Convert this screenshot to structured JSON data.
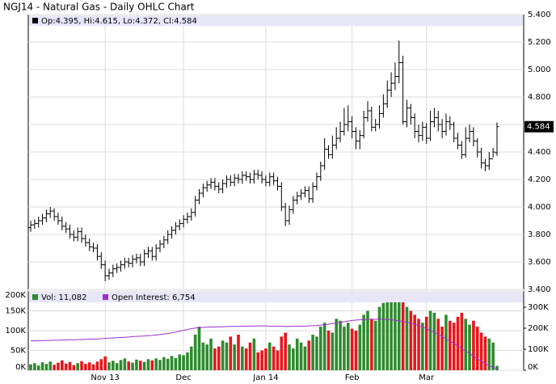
{
  "chart_data": [
    {
      "type": "ohlc",
      "title": "NGJ14 - Natural Gas - Daily OHLC Chart",
      "legend": "Op:4.395, Hi:4.615, Lo:4.372, Cl:4.584",
      "last_label": "4.584",
      "color": "#000000",
      "ylim": [
        3.4,
        5.4
      ],
      "yticks": [
        {
          "value": 3.4,
          "label": "3.400"
        },
        {
          "value": 3.6,
          "label": "3.600"
        },
        {
          "value": 3.8,
          "label": "3.800"
        },
        {
          "value": 4.0,
          "label": "4.000"
        },
        {
          "value": 4.2,
          "label": "4.200"
        },
        {
          "value": 4.4,
          "label": "4.400"
        },
        {
          "value": 4.6,
          "label": "4.600"
        },
        {
          "value": 4.8,
          "label": "4.800"
        },
        {
          "value": 5.0,
          "label": "5.000"
        },
        {
          "value": 5.2,
          "label": "5.200"
        },
        {
          "value": 5.4,
          "label": "5.400"
        }
      ],
      "grid": true,
      "open": [
        3.85,
        3.87,
        3.88,
        3.9,
        3.92,
        3.95,
        3.97,
        3.93,
        3.9,
        3.86,
        3.84,
        3.8,
        3.78,
        3.82,
        3.77,
        3.74,
        3.71,
        3.7,
        3.64,
        3.58,
        3.5,
        3.52,
        3.55,
        3.56,
        3.58,
        3.6,
        3.59,
        3.62,
        3.63,
        3.6,
        3.66,
        3.68,
        3.64,
        3.7,
        3.73,
        3.76,
        3.8,
        3.83,
        3.86,
        3.88,
        3.91,
        3.93,
        3.96,
        4.05,
        4.1,
        4.14,
        4.16,
        4.18,
        4.15,
        4.13,
        4.17,
        4.2,
        4.18,
        4.21,
        4.2,
        4.23,
        4.22,
        4.2,
        4.24,
        4.23,
        4.2,
        4.18,
        4.22,
        4.19,
        4.15,
        4.0,
        3.9,
        3.98,
        4.05,
        4.08,
        4.1,
        4.12,
        4.06,
        4.15,
        4.22,
        4.3,
        4.42,
        4.38,
        4.45,
        4.5,
        4.55,
        4.6,
        4.62,
        4.55,
        4.48,
        4.52,
        4.65,
        4.7,
        4.58,
        4.6,
        4.68,
        4.75,
        4.85,
        4.9,
        4.95,
        5.05,
        4.62,
        4.72,
        4.65,
        4.55,
        4.52,
        4.58,
        4.5,
        4.62,
        4.65,
        4.6,
        4.55,
        4.62,
        4.6,
        4.5,
        4.45,
        4.38,
        4.5,
        4.55,
        4.48,
        4.4,
        4.32,
        4.3,
        4.35,
        4.395
      ],
      "high": [
        3.9,
        3.91,
        3.93,
        3.95,
        3.98,
        4.0,
        3.99,
        3.96,
        3.93,
        3.89,
        3.87,
        3.83,
        3.85,
        3.85,
        3.8,
        3.77,
        3.74,
        3.73,
        3.67,
        3.61,
        3.55,
        3.58,
        3.59,
        3.61,
        3.63,
        3.63,
        3.65,
        3.66,
        3.66,
        3.69,
        3.71,
        3.71,
        3.73,
        3.76,
        3.79,
        3.83,
        3.86,
        3.89,
        3.91,
        3.94,
        3.96,
        3.99,
        4.08,
        4.13,
        4.17,
        4.19,
        4.21,
        4.21,
        4.18,
        4.2,
        4.23,
        4.23,
        4.24,
        4.24,
        4.26,
        4.26,
        4.25,
        4.27,
        4.27,
        4.26,
        4.23,
        4.25,
        4.25,
        4.22,
        4.18,
        4.03,
        4.01,
        4.08,
        4.11,
        4.13,
        4.15,
        4.15,
        4.18,
        4.25,
        4.33,
        4.5,
        4.45,
        4.52,
        4.58,
        4.62,
        4.72,
        4.74,
        4.66,
        4.58,
        4.56,
        4.7,
        4.77,
        4.73,
        4.64,
        4.74,
        4.82,
        4.92,
        4.98,
        5.05,
        5.21,
        5.1,
        4.78,
        4.75,
        4.68,
        4.6,
        4.62,
        4.61,
        4.7,
        4.72,
        4.7,
        4.64,
        4.68,
        4.66,
        4.62,
        4.54,
        4.48,
        4.58,
        4.6,
        4.58,
        4.5,
        4.43,
        4.35,
        4.4,
        4.43,
        4.615
      ],
      "low": [
        3.82,
        3.84,
        3.85,
        3.87,
        3.89,
        3.92,
        3.9,
        3.87,
        3.83,
        3.81,
        3.77,
        3.75,
        3.75,
        3.74,
        3.71,
        3.68,
        3.67,
        3.61,
        3.55,
        3.46,
        3.47,
        3.49,
        3.52,
        3.53,
        3.55,
        3.56,
        3.56,
        3.59,
        3.57,
        3.57,
        3.63,
        3.61,
        3.61,
        3.67,
        3.7,
        3.73,
        3.77,
        3.8,
        3.83,
        3.85,
        3.88,
        3.9,
        3.93,
        4.02,
        4.07,
        4.11,
        4.13,
        4.12,
        4.1,
        4.1,
        4.14,
        4.15,
        4.15,
        4.17,
        4.17,
        4.19,
        4.17,
        4.17,
        4.2,
        4.17,
        4.15,
        4.15,
        4.16,
        4.12,
        3.97,
        3.86,
        3.87,
        3.95,
        4.02,
        4.05,
        4.07,
        4.03,
        4.03,
        4.12,
        4.19,
        4.27,
        4.35,
        4.35,
        4.42,
        4.47,
        4.52,
        4.55,
        4.5,
        4.42,
        4.42,
        4.5,
        4.62,
        4.55,
        4.55,
        4.57,
        4.65,
        4.72,
        4.8,
        4.85,
        4.9,
        4.6,
        4.58,
        4.6,
        4.5,
        4.47,
        4.48,
        4.46,
        4.48,
        4.58,
        4.55,
        4.5,
        4.52,
        4.56,
        4.47,
        4.42,
        4.35,
        4.36,
        4.47,
        4.44,
        4.36,
        4.28,
        4.26,
        4.27,
        4.36,
        4.372
      ],
      "close": [
        3.87,
        3.88,
        3.9,
        3.92,
        3.95,
        3.97,
        3.93,
        3.9,
        3.86,
        3.84,
        3.8,
        3.78,
        3.82,
        3.77,
        3.74,
        3.71,
        3.7,
        3.64,
        3.58,
        3.5,
        3.52,
        3.55,
        3.56,
        3.58,
        3.6,
        3.59,
        3.62,
        3.63,
        3.6,
        3.66,
        3.68,
        3.64,
        3.7,
        3.73,
        3.76,
        3.8,
        3.83,
        3.86,
        3.88,
        3.91,
        3.93,
        3.96,
        4.05,
        4.1,
        4.14,
        4.16,
        4.18,
        4.15,
        4.13,
        4.17,
        4.2,
        4.18,
        4.21,
        4.2,
        4.23,
        4.22,
        4.2,
        4.24,
        4.23,
        4.2,
        4.18,
        4.22,
        4.19,
        4.15,
        4.0,
        3.9,
        3.98,
        4.05,
        4.08,
        4.1,
        4.12,
        4.06,
        4.15,
        4.22,
        4.3,
        4.42,
        4.38,
        4.45,
        4.5,
        4.55,
        4.6,
        4.62,
        4.55,
        4.48,
        4.52,
        4.65,
        4.7,
        4.58,
        4.6,
        4.68,
        4.75,
        4.85,
        4.9,
        4.95,
        5.05,
        4.62,
        4.72,
        4.65,
        4.55,
        4.52,
        4.58,
        4.5,
        4.62,
        4.65,
        4.6,
        4.55,
        4.62,
        4.6,
        4.5,
        4.45,
        4.38,
        4.5,
        4.55,
        4.48,
        4.4,
        4.32,
        4.3,
        4.35,
        4.4,
        4.584
      ]
    },
    {
      "type": "volume",
      "categories": [
        null,
        null,
        null,
        null,
        null,
        null,
        null,
        null,
        null,
        null,
        null,
        null,
        null,
        null,
        null,
        null,
        null,
        null,
        null,
        "Nov 13",
        null,
        null,
        null,
        null,
        null,
        null,
        null,
        null,
        null,
        null,
        null,
        null,
        null,
        null,
        null,
        null,
        null,
        null,
        null,
        "Dec",
        null,
        null,
        null,
        null,
        null,
        null,
        null,
        null,
        null,
        null,
        null,
        null,
        null,
        null,
        null,
        null,
        null,
        null,
        null,
        null,
        "Jan 14",
        null,
        null,
        null,
        null,
        null,
        null,
        null,
        null,
        null,
        null,
        null,
        null,
        null,
        null,
        null,
        null,
        null,
        null,
        null,
        null,
        null,
        "Feb",
        null,
        null,
        null,
        null,
        null,
        null,
        null,
        null,
        null,
        null,
        null,
        null,
        null,
        null,
        null,
        null,
        null,
        null,
        "Mar",
        null,
        null,
        null,
        null,
        null,
        null,
        null,
        null,
        null,
        null,
        null,
        null,
        null,
        null,
        null,
        null,
        null,
        null
      ],
      "ylim": [
        0,
        200000
      ],
      "yticks": [
        {
          "value": 0,
          "label": "0K"
        },
        {
          "value": 50000,
          "label": "50K"
        },
        {
          "value": 100000,
          "label": "100K"
        },
        {
          "value": 150000,
          "label": "150K"
        },
        {
          "value": 200000,
          "label": "200K"
        }
      ],
      "y2lim": [
        0,
        377000
      ],
      "y2ticks": [
        {
          "value": 0,
          "label": "0K"
        },
        {
          "value": 100000,
          "label": "100K"
        },
        {
          "value": 200000,
          "label": "200K"
        },
        {
          "value": 300000,
          "label": "300K"
        }
      ],
      "series": [
        {
          "name": "Vol: 11,082",
          "up_color": "#2e8b2e",
          "down_color": "#e8161b",
          "values": [
            15000,
            18000,
            12000,
            20000,
            16000,
            22000,
            14000,
            19000,
            25000,
            17000,
            21000,
            13000,
            18000,
            23000,
            16000,
            20000,
            15000,
            22000,
            28000,
            35000,
            20000,
            24000,
            18000,
            26000,
            30000,
            22000,
            19000,
            27000,
            24000,
            21000,
            28000,
            25000,
            30000,
            26000,
            33000,
            29000,
            36000,
            31000,
            40000,
            38000,
            45000,
            60000,
            90000,
            110000,
            70000,
            65000,
            80000,
            55000,
            60000,
            75000,
            70000,
            85000,
            65000,
            90000,
            60000,
            55000,
            70000,
            80000,
            45000,
            50000,
            55000,
            70000,
            60000,
            50000,
            85000,
            95000,
            65000,
            55000,
            80000,
            70000,
            60000,
            75000,
            90000,
            85000,
            110000,
            120000,
            100000,
            95000,
            130000,
            125000,
            110000,
            120000,
            105000,
            100000,
            115000,
            140000,
            150000,
            130000,
            125000,
            160000,
            170000,
            180000,
            190000,
            175000,
            195000,
            185000,
            160000,
            150000,
            140000,
            130000,
            120000,
            135000,
            150000,
            145000,
            130000,
            110000,
            140000,
            125000,
            120000,
            135000,
            145000,
            130000,
            115000,
            125000,
            110000,
            95000,
            85000,
            80000,
            70000,
            11082
          ]
        },
        {
          "name": "Open Interest: 6,754",
          "color": "#9b30d0",
          "axis": "y2",
          "values": [
            140000,
            140000,
            141000,
            141000,
            142000,
            142000,
            143000,
            143000,
            144000,
            144000,
            145000,
            145000,
            146000,
            146000,
            147000,
            148000,
            148000,
            149000,
            150000,
            152000,
            153000,
            154000,
            155000,
            156000,
            157000,
            158000,
            160000,
            161000,
            162000,
            163000,
            165000,
            166000,
            168000,
            170000,
            172000,
            175000,
            178000,
            182000,
            186000,
            190000,
            194000,
            198000,
            201000,
            203000,
            204000,
            205000,
            206000,
            206000,
            207000,
            207000,
            208000,
            208000,
            209000,
            209000,
            209000,
            210000,
            210000,
            210000,
            211000,
            211000,
            211000,
            210000,
            210000,
            209000,
            209000,
            208000,
            208000,
            209000,
            209000,
            210000,
            210000,
            211000,
            212000,
            213000,
            215000,
            217000,
            219000,
            222000,
            225000,
            228000,
            231000,
            234000,
            237000,
            239000,
            240000,
            241000,
            242000,
            242000,
            243000,
            243000,
            243000,
            242000,
            240000,
            238000,
            235000,
            232000,
            228000,
            224000,
            219000,
            213000,
            206000,
            198000,
            189000,
            180000,
            170000,
            160000,
            149000,
            138000,
            127000,
            115000,
            103000,
            91000,
            79000,
            67000,
            55000,
            43000,
            32000,
            22000,
            13000,
            6754
          ]
        }
      ]
    }
  ]
}
